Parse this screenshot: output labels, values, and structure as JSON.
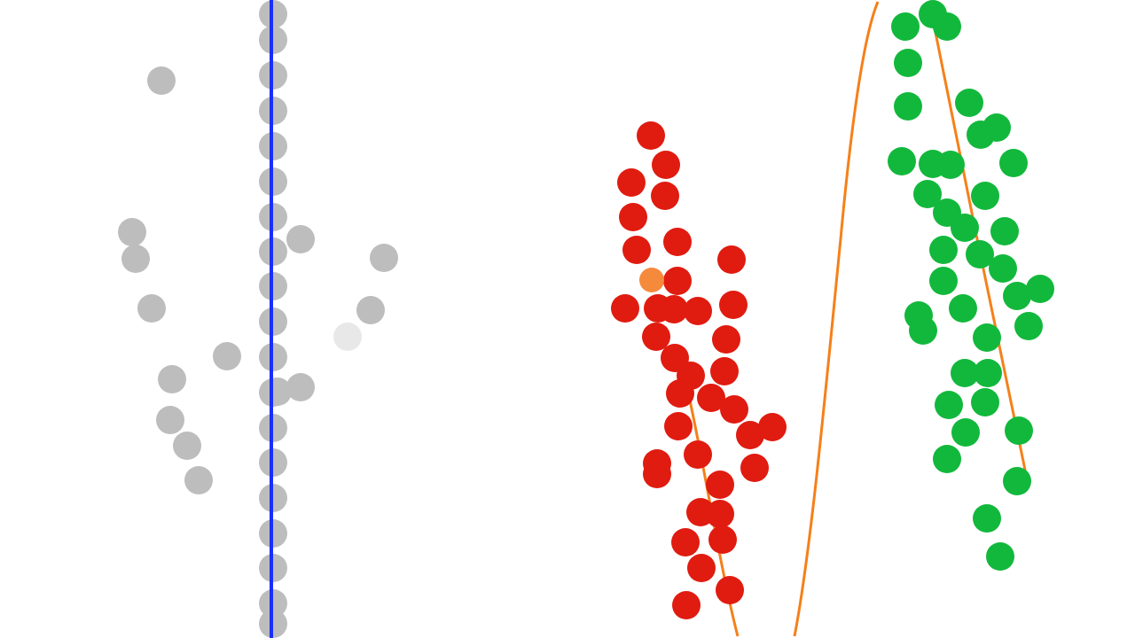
{
  "scene": {
    "background": "#ffffff",
    "colors": {
      "gray_points": "#bdbdbd",
      "red_points": "#e01b10",
      "green_points": "#12b83c",
      "highlight_point": "#f58a3c",
      "vertical_line": "#1a2fff",
      "fit_curve": "#f5801a"
    }
  }
}
